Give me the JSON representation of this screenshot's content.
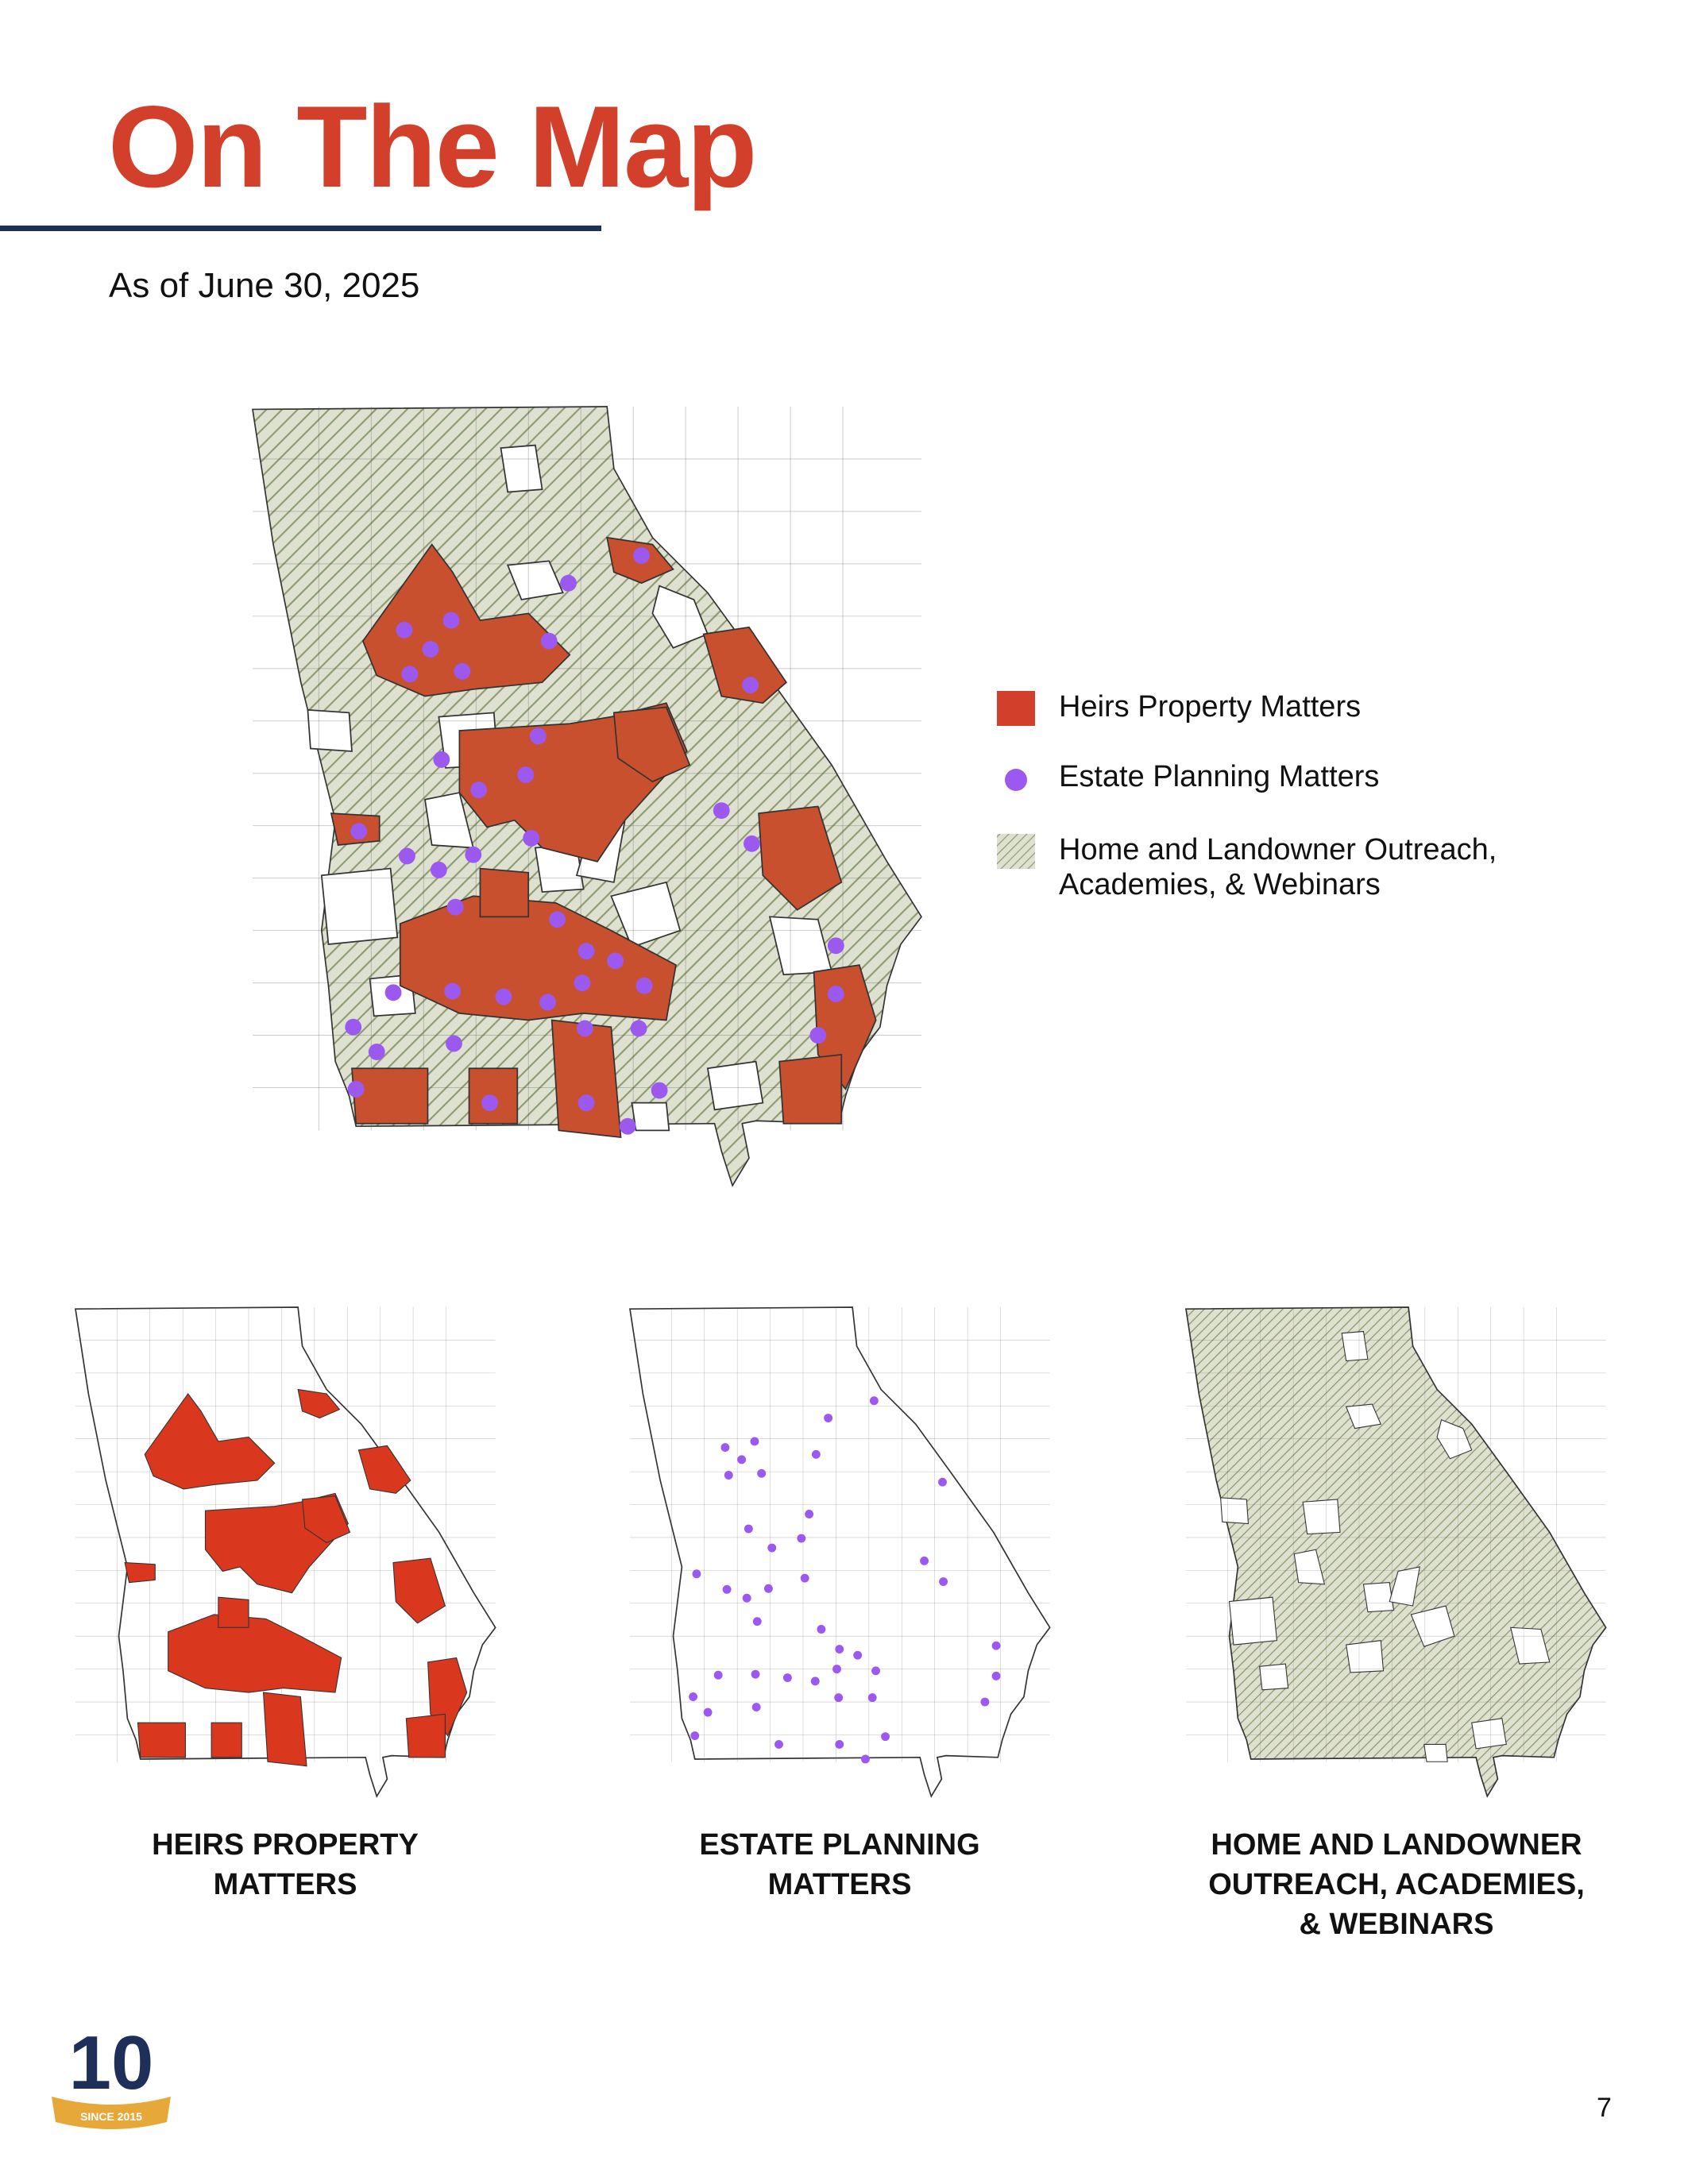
{
  "header": {
    "title": "On The Map",
    "subtitle": "As of June 30, 2025"
  },
  "legend": [
    {
      "label": "Heirs Property Matters"
    },
    {
      "label": "Estate Planning Matters"
    },
    {
      "lines": [
        "Home and Landowner Outreach,",
        "Academies, & Webinars"
      ]
    }
  ],
  "captions": [
    {
      "lines": [
        "HEIRS PROPERTY",
        "MATTERS"
      ]
    },
    {
      "lines": [
        "ESTATE PLANNING",
        "MATTERS"
      ]
    },
    {
      "lines": [
        "HOME AND LANDOWNER",
        "OUTREACH, ACADEMIES,",
        "& WEBINARS"
      ]
    }
  ],
  "logo": {
    "number": "10",
    "banner": "SINCE 2015"
  },
  "footer": {
    "page": "7"
  }
}
